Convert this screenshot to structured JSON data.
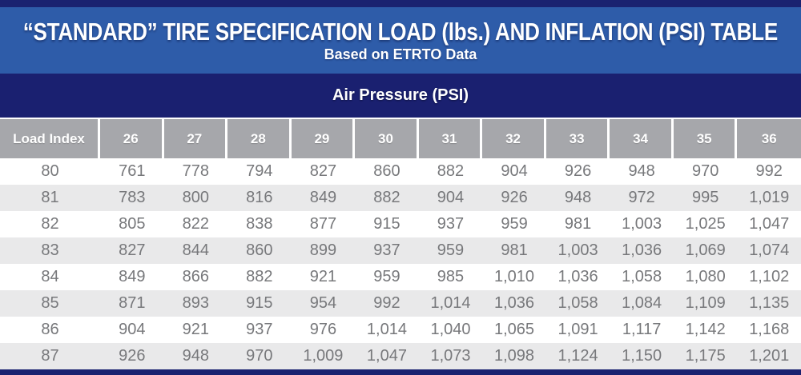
{
  "header": {
    "title": "“STANDARD” TIRE SPECIFICATION LOAD (lbs.) AND INFLATION (PSI) TABLE",
    "subtitle": "Based on ETRTO Data"
  },
  "table": {
    "group_header": "Air Pressure (PSI)",
    "load_index_header": "Load Index"
  },
  "colors": {
    "banner_blue": "#2e5ca9",
    "navy_band": "#1a2070",
    "border_strip": "#1a2270",
    "header_gray": "#a6a7ab",
    "row_stripe_gray": "#e9e9ea",
    "value_text_gray": "#77787b",
    "header_text_white": "#ffffff"
  },
  "chart_data": {
    "type": "table",
    "title": "“STANDARD” TIRE SPECIFICATION LOAD (lbs.) AND INFLATION (PSI) TABLE",
    "subtitle": "Based on ETRTO Data",
    "group_header": "Air Pressure (PSI)",
    "columns": [
      "Load Index",
      "26",
      "27",
      "28",
      "29",
      "30",
      "31",
      "32",
      "33",
      "34",
      "35",
      "36"
    ],
    "rows": [
      [
        80,
        761,
        778,
        794,
        827,
        860,
        882,
        904,
        926,
        948,
        970,
        992
      ],
      [
        81,
        783,
        800,
        816,
        849,
        882,
        904,
        926,
        948,
        972,
        995,
        1019
      ],
      [
        82,
        805,
        822,
        838,
        877,
        915,
        937,
        959,
        981,
        1003,
        1025,
        1047
      ],
      [
        83,
        827,
        844,
        860,
        899,
        937,
        959,
        981,
        1003,
        1036,
        1069,
        1074
      ],
      [
        84,
        849,
        866,
        882,
        921,
        959,
        985,
        1010,
        1036,
        1058,
        1080,
        1102
      ],
      [
        85,
        871,
        893,
        915,
        954,
        992,
        1014,
        1036,
        1058,
        1084,
        1109,
        1135
      ],
      [
        86,
        904,
        921,
        937,
        976,
        1014,
        1040,
        1065,
        1091,
        1117,
        1142,
        1168
      ],
      [
        87,
        926,
        948,
        970,
        1009,
        1047,
        1073,
        1098,
        1124,
        1150,
        1175,
        1201
      ]
    ]
  }
}
